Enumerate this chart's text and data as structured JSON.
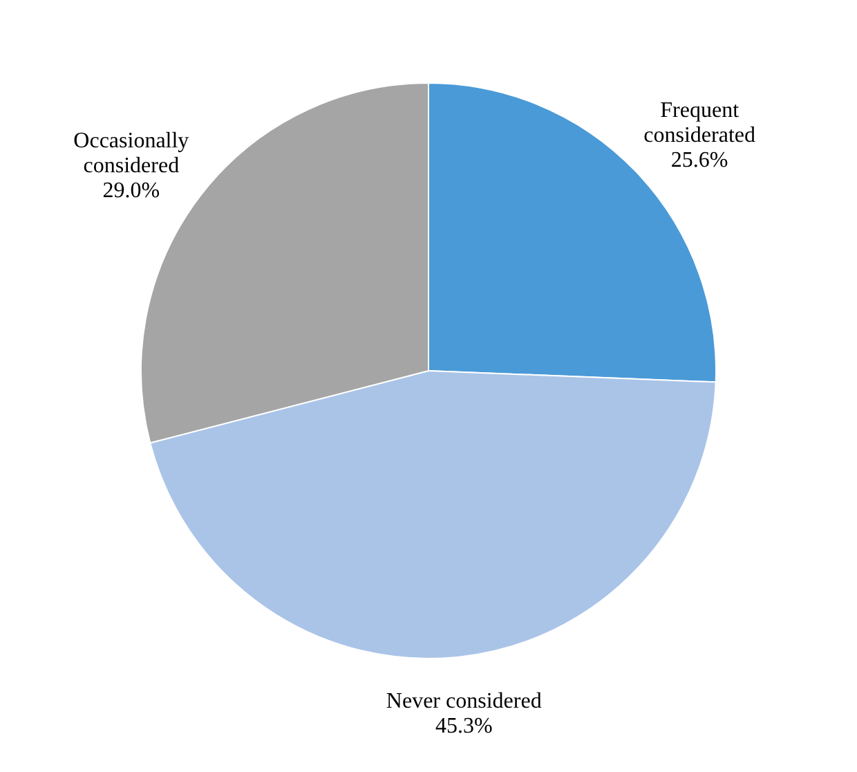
{
  "chart_data": {
    "type": "pie",
    "categories": [
      "Frequent considerated",
      "Never considered",
      "Occasionally considered"
    ],
    "values": [
      25.6,
      45.3,
      29.0
    ],
    "value_labels": [
      "25.6%",
      "45.3%",
      "29.0%"
    ],
    "colors": [
      "#4a9ad8",
      "#aac4e8",
      "#a5a5a5"
    ]
  }
}
